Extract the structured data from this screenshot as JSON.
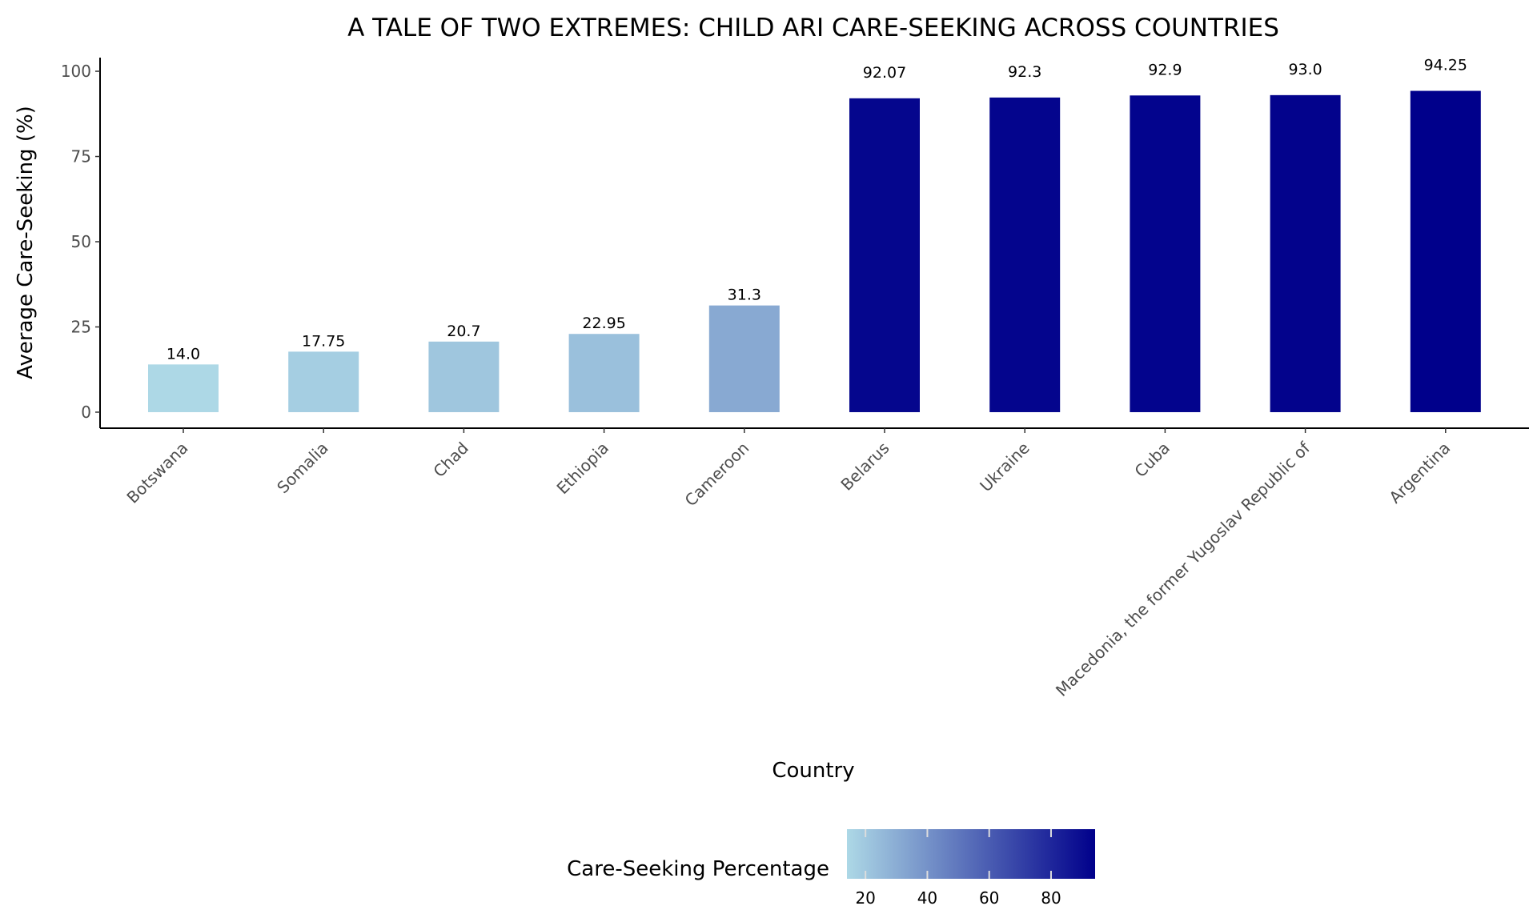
{
  "chart_data": {
    "type": "bar",
    "title": "A TALE OF TWO EXTREMES: CHILD ARI CARE-SEEKING ACROSS COUNTRIES",
    "xlabel": "Country",
    "ylabel": "Average Care-Seeking (%)",
    "ylim": [
      -4.7,
      104
    ],
    "yticks": [
      0,
      25,
      50,
      75,
      100
    ],
    "grid": false,
    "categories": [
      "Botswana",
      "Somalia",
      "Chad",
      "Ethiopia",
      "Cameroon",
      "Belarus",
      "Ukraine",
      "Cuba",
      "Macedonia, the former Yugoslav Republic of",
      "Argentina"
    ],
    "values": [
      14.0,
      17.75,
      20.7,
      22.95,
      31.3,
      92.07,
      92.3,
      92.9,
      93.0,
      94.25
    ],
    "data_labels": [
      "14.0",
      "17.75",
      "20.7",
      "22.95",
      "31.3",
      "92.07",
      "92.3",
      "92.9",
      "93.0",
      "94.25"
    ],
    "legend": {
      "title": "Care-Seeking Percentage",
      "placement": "bottom",
      "type": "colorbar",
      "ticks": [
        20,
        40,
        60,
        80
      ],
      "range": [
        14.0,
        94.25
      ],
      "color_low": "#add8e6",
      "color_high": "#00008b"
    }
  }
}
